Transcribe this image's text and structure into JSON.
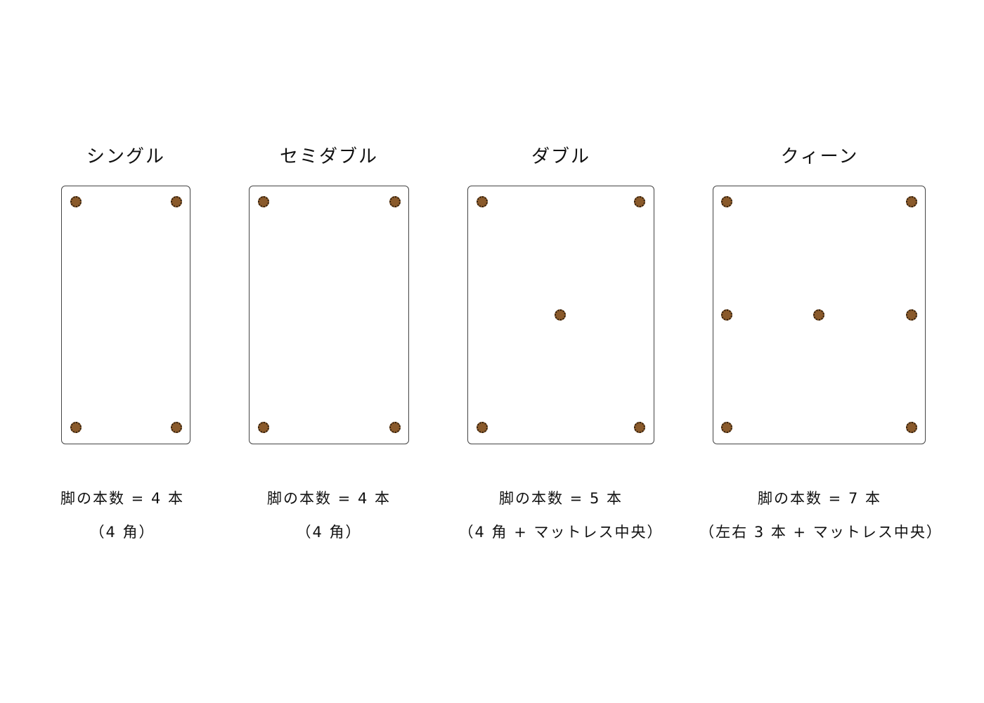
{
  "colors": {
    "leg": "#8a5a2b",
    "frame": "#444444"
  },
  "beds": [
    {
      "title": "シングル",
      "legs_count": 4,
      "line1": "脚の本数 = 4 本",
      "line2": "（4 角）"
    },
    {
      "title": "セミダブル",
      "legs_count": 4,
      "line1": "脚の本数 = 4 本",
      "line2": "（4 角）"
    },
    {
      "title": "ダブル",
      "legs_count": 5,
      "line1": "脚の本数 = 5 本",
      "line2": "（4 角 + マットレス中央）"
    },
    {
      "title": "クィーン",
      "legs_count": 7,
      "line1": "脚の本数 = 7 本",
      "line2": "（左右 3 本 + マットレス中央）"
    }
  ]
}
